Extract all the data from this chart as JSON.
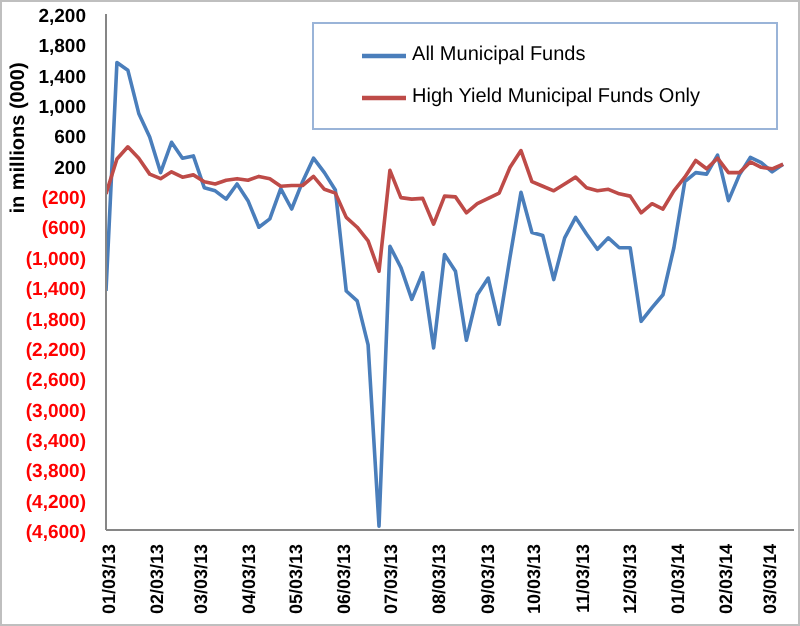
{
  "chart_data": {
    "type": "line",
    "ylabel": "in millions (000)",
    "x": [
      "2013-01-02",
      "2013-01-09",
      "2013-01-16",
      "2013-01-23",
      "2013-01-30",
      "2013-02-06",
      "2013-02-13",
      "2013-02-20",
      "2013-02-27",
      "2013-03-06",
      "2013-03-13",
      "2013-03-20",
      "2013-03-27",
      "2013-04-03",
      "2013-04-10",
      "2013-04-17",
      "2013-04-24",
      "2013-05-01",
      "2013-05-08",
      "2013-05-15",
      "2013-05-22",
      "2013-05-29",
      "2013-06-05",
      "2013-06-12",
      "2013-06-19",
      "2013-06-26",
      "2013-07-03",
      "2013-07-10",
      "2013-07-17",
      "2013-07-24",
      "2013-07-31",
      "2013-08-07",
      "2013-08-14",
      "2013-08-21",
      "2013-08-28",
      "2013-09-04",
      "2013-09-11",
      "2013-09-18",
      "2013-09-25",
      "2013-10-02",
      "2013-10-09",
      "2013-10-16",
      "2013-10-23",
      "2013-10-30",
      "2013-11-06",
      "2013-11-13",
      "2013-11-20",
      "2013-11-27",
      "2013-12-04",
      "2013-12-11",
      "2013-12-18",
      "2013-12-25",
      "2014-01-01",
      "2014-01-08",
      "2014-01-15",
      "2014-01-22",
      "2014-01-29",
      "2014-02-05",
      "2014-02-12",
      "2014-02-19",
      "2014-02-26",
      "2014-03-05",
      "2014-03-12"
    ],
    "series": [
      {
        "name": "All Municipal Funds",
        "color": "#4a7ebb",
        "values": [
          -1450,
          1560,
          1460,
          890,
          580,
          110,
          510,
          300,
          330,
          -90,
          -130,
          -240,
          -40,
          -260,
          -610,
          -500,
          -100,
          -370,
          -10,
          300,
          110,
          -120,
          -1450,
          -1580,
          -2160,
          -4550,
          -860,
          -1140,
          -1560,
          -1210,
          -2200,
          -970,
          -1190,
          -2100,
          -1500,
          -1280,
          -1890,
          -1000,
          -150,
          -680,
          -720,
          -1300,
          -750,
          -480,
          -700,
          -900,
          -750,
          -880,
          -880,
          -1850,
          -1670,
          -1500,
          -880,
          -10,
          110,
          90,
          340,
          -260,
          80,
          310,
          240,
          120,
          220
        ]
      },
      {
        "name": "High Yield Municipal Funds Only",
        "color": "#be4b48",
        "values": [
          -170,
          290,
          450,
          300,
          90,
          30,
          120,
          50,
          80,
          -10,
          -40,
          10,
          30,
          10,
          60,
          30,
          -70,
          -60,
          -60,
          60,
          -110,
          -160,
          -480,
          -610,
          -790,
          -1190,
          140,
          -220,
          -240,
          -230,
          -570,
          -200,
          -210,
          -420,
          -300,
          -230,
          -160,
          180,
          400,
          -10,
          -70,
          -130,
          -40,
          50,
          -90,
          -130,
          -110,
          -170,
          -200,
          -420,
          -300,
          -370,
          -130,
          50,
          270,
          160,
          300,
          110,
          110,
          250,
          180,
          160,
          220
        ]
      }
    ],
    "xlim": [
      "2013-01-02",
      "2014-03-19"
    ],
    "xticks": [
      {
        "value": "2013-01-03",
        "label": "01/03/13"
      },
      {
        "value": "2013-02-03",
        "label": "02/03/13"
      },
      {
        "value": "2013-03-03",
        "label": "03/03/13"
      },
      {
        "value": "2013-04-03",
        "label": "04/03/13"
      },
      {
        "value": "2013-05-03",
        "label": "05/03/13"
      },
      {
        "value": "2013-06-03",
        "label": "06/03/13"
      },
      {
        "value": "2013-07-03",
        "label": "07/03/13"
      },
      {
        "value": "2013-08-03",
        "label": "08/03/13"
      },
      {
        "value": "2013-09-03",
        "label": "09/03/13"
      },
      {
        "value": "2013-10-03",
        "label": "10/03/13"
      },
      {
        "value": "2013-11-03",
        "label": "11/03/13"
      },
      {
        "value": "2013-12-03",
        "label": "12/03/13"
      },
      {
        "value": "2014-01-03",
        "label": "01/03/14"
      },
      {
        "value": "2014-02-03",
        "label": "02/03/14"
      },
      {
        "value": "2014-03-03",
        "label": "03/03/14"
      }
    ],
    "ylim": [
      -4600,
      2200
    ],
    "yticks": [
      {
        "value": -4600,
        "label": "(4,600)"
      },
      {
        "value": -4200,
        "label": "(4,200)"
      },
      {
        "value": -3800,
        "label": "(3,800)"
      },
      {
        "value": -3400,
        "label": "(3,400)"
      },
      {
        "value": -3000,
        "label": "(3,000)"
      },
      {
        "value": -2600,
        "label": "(2,600)"
      },
      {
        "value": -2200,
        "label": "(2,200)"
      },
      {
        "value": -1800,
        "label": "(1,800)"
      },
      {
        "value": -1400,
        "label": "(1,400)"
      },
      {
        "value": -1000,
        "label": "(1,000)"
      },
      {
        "value": -600,
        "label": "(600)"
      },
      {
        "value": -200,
        "label": "(200)"
      },
      {
        "value": 200,
        "label": "200"
      },
      {
        "value": 600,
        "label": "600"
      },
      {
        "value": 1000,
        "label": "1,000"
      },
      {
        "value": 1400,
        "label": "1,400"
      },
      {
        "value": 1800,
        "label": "1,800"
      },
      {
        "value": 2200,
        "label": "2,200"
      }
    ],
    "legend": "top right",
    "grid": false,
    "marker": "none",
    "line_style": "solid"
  }
}
